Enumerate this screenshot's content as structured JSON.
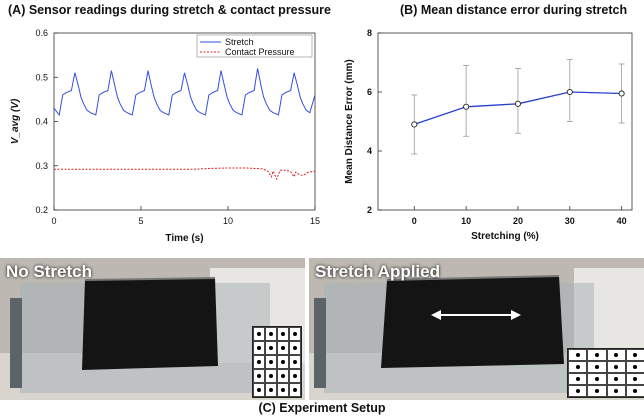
{
  "panel_a": {
    "title": "(A) Sensor readings during stretch & contact pressure"
  },
  "panel_b": {
    "title": "(B) Mean distance error during stretch"
  },
  "panel_c": {
    "caption": "(C) Experiment Setup",
    "left_label": "No Stretch",
    "right_label": "Stretch Applied"
  },
  "colors": {
    "stretch": "#3050e0",
    "pressure": "#e02020",
    "error_line": "#2a3fd0",
    "errorbar": "#999999"
  },
  "chart_data": [
    {
      "type": "line",
      "title": "(A) Sensor readings during stretch & contact pressure",
      "xlabel": "Time (s)",
      "ylabel": "V_avg (V)",
      "xlim": [
        0,
        15
      ],
      "ylim": [
        0.2,
        0.6
      ],
      "xticks": [
        0,
        5,
        10,
        15
      ],
      "yticks": [
        0.2,
        0.3,
        0.4,
        0.5,
        0.6
      ],
      "legend": "top-right",
      "series": [
        {
          "name": "Stretch",
          "x": [
            0,
            0.3,
            0.5,
            0.7,
            1.0,
            1.2,
            1.4,
            1.55,
            1.7,
            1.9,
            2.1,
            2.4,
            2.6,
            2.8,
            3.1,
            3.3,
            3.5,
            3.65,
            3.8,
            4.0,
            4.2,
            4.5,
            4.7,
            4.9,
            5.2,
            5.4,
            5.6,
            5.75,
            5.9,
            6.1,
            6.3,
            6.6,
            6.8,
            7.0,
            7.3,
            7.5,
            7.7,
            7.85,
            8.0,
            8.2,
            8.4,
            8.7,
            8.9,
            9.1,
            9.4,
            9.6,
            9.8,
            9.95,
            10.1,
            10.3,
            10.5,
            10.8,
            11.0,
            11.2,
            11.5,
            11.7,
            11.9,
            12.05,
            12.2,
            12.4,
            12.6,
            12.9,
            13.1,
            13.3,
            13.6,
            13.8,
            14.0,
            14.15,
            14.3,
            14.5,
            14.7,
            15.0
          ],
          "values": [
            0.43,
            0.415,
            0.46,
            0.465,
            0.47,
            0.51,
            0.48,
            0.455,
            0.44,
            0.425,
            0.42,
            0.415,
            0.46,
            0.465,
            0.47,
            0.515,
            0.48,
            0.455,
            0.44,
            0.425,
            0.42,
            0.415,
            0.46,
            0.465,
            0.47,
            0.515,
            0.48,
            0.455,
            0.44,
            0.425,
            0.42,
            0.415,
            0.46,
            0.465,
            0.47,
            0.51,
            0.48,
            0.455,
            0.44,
            0.425,
            0.42,
            0.415,
            0.46,
            0.465,
            0.47,
            0.515,
            0.48,
            0.455,
            0.44,
            0.425,
            0.42,
            0.415,
            0.46,
            0.465,
            0.47,
            0.52,
            0.48,
            0.455,
            0.44,
            0.425,
            0.42,
            0.415,
            0.46,
            0.465,
            0.47,
            0.51,
            0.48,
            0.455,
            0.44,
            0.425,
            0.42,
            0.46
          ]
        },
        {
          "name": "Contact Pressure",
          "x": [
            0,
            2,
            4,
            6,
            8,
            9,
            10,
            11,
            12,
            12.3,
            12.5,
            12.6,
            12.8,
            13.0,
            13.3,
            13.6,
            13.8,
            13.9,
            14.1,
            14.3,
            14.6,
            15.0
          ],
          "values": [
            0.292,
            0.292,
            0.292,
            0.292,
            0.292,
            0.294,
            0.295,
            0.295,
            0.293,
            0.287,
            0.275,
            0.288,
            0.27,
            0.29,
            0.29,
            0.287,
            0.275,
            0.286,
            0.28,
            0.278,
            0.285,
            0.288
          ]
        }
      ]
    },
    {
      "type": "line",
      "title": "(B) Mean distance error during stretch",
      "xlabel": "Stretching (%)",
      "ylabel": "Mean Distance Error (mm)",
      "xlim": [
        -7,
        42
      ],
      "ylim": [
        2,
        8
      ],
      "xticks": [
        0,
        10,
        20,
        30,
        40
      ],
      "yticks": [
        2,
        4,
        6,
        8
      ],
      "x": [
        0,
        10,
        20,
        30,
        40
      ],
      "values": [
        4.9,
        5.5,
        5.6,
        6.0,
        5.95
      ],
      "error_low": [
        3.9,
        4.5,
        4.6,
        5.0,
        4.95
      ],
      "error_high": [
        5.9,
        6.9,
        6.8,
        7.1,
        6.95
      ]
    }
  ]
}
